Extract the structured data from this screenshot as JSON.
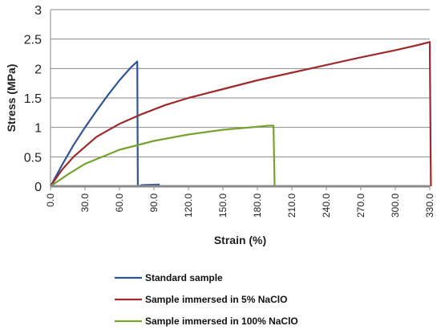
{
  "chart_data": {
    "type": "line",
    "title": "",
    "xlabel": "Strain (%)",
    "ylabel": "Stress (MPa)",
    "xlim": [
      0,
      330
    ],
    "ylim": [
      0,
      3
    ],
    "x_ticks": [
      "0.0",
      "30.0",
      "60.0",
      "90.0",
      "120.0",
      "150.0",
      "180.0",
      "210.0",
      "240.0",
      "270.0",
      "300.0",
      "330.0"
    ],
    "y_ticks": [
      "0",
      "0.5",
      "1",
      "1.5",
      "2",
      "2.5",
      "3"
    ],
    "grid": true,
    "legend_position": "bottom",
    "series": [
      {
        "name": "Standard sample",
        "color": "#2e5597",
        "points": [
          [
            0,
            0
          ],
          [
            10,
            0.36
          ],
          [
            20,
            0.7
          ],
          [
            30,
            1.0
          ],
          [
            40,
            1.28
          ],
          [
            50,
            1.55
          ],
          [
            60,
            1.8
          ],
          [
            70,
            2.02
          ],
          [
            75.5,
            2.12
          ],
          [
            76,
            0
          ],
          [
            80,
            0.02
          ],
          [
            95,
            0.03
          ]
        ]
      },
      {
        "name": "Sample immersed in 5% NaClO",
        "color": "#9e2a2b",
        "points": [
          [
            0,
            0
          ],
          [
            10,
            0.28
          ],
          [
            20,
            0.5
          ],
          [
            40,
            0.84
          ],
          [
            60,
            1.06
          ],
          [
            80,
            1.23
          ],
          [
            100,
            1.38
          ],
          [
            120,
            1.5
          ],
          [
            150,
            1.65
          ],
          [
            180,
            1.8
          ],
          [
            210,
            1.93
          ],
          [
            240,
            2.06
          ],
          [
            270,
            2.19
          ],
          [
            300,
            2.31
          ],
          [
            320,
            2.4
          ],
          [
            330,
            2.45
          ],
          [
            331,
            0
          ]
        ]
      },
      {
        "name": "Sample immersed in 100% NaClO",
        "color": "#78a22f",
        "points": [
          [
            0,
            0
          ],
          [
            15,
            0.2
          ],
          [
            30,
            0.38
          ],
          [
            60,
            0.62
          ],
          [
            90,
            0.77
          ],
          [
            120,
            0.88
          ],
          [
            150,
            0.96
          ],
          [
            180,
            1.01
          ],
          [
            190,
            1.03
          ],
          [
            194,
            1.03
          ],
          [
            195,
            0
          ],
          [
            205,
            0
          ]
        ]
      }
    ]
  }
}
